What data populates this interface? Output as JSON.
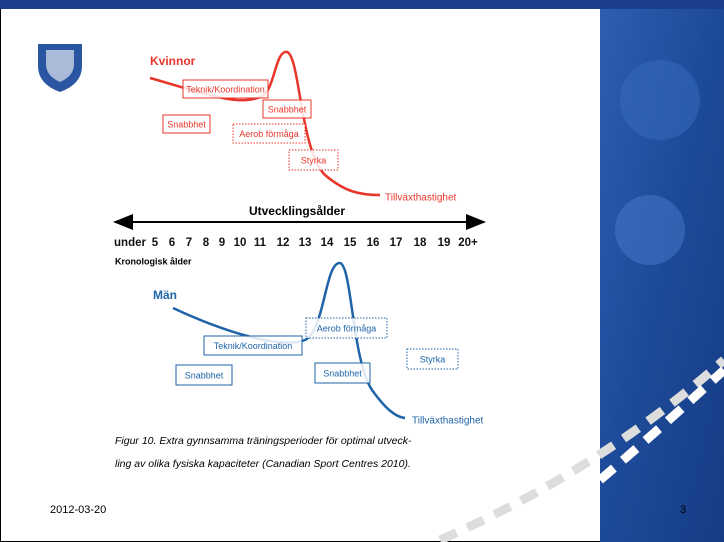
{
  "slide": {
    "women": {
      "title": "Kvinnor",
      "growth": "Tillväxthastighet",
      "boxes": [
        "Teknik/Koordination",
        "Snabbhet",
        "Snabbhet",
        "Aerob förmåga",
        "Styrka"
      ]
    },
    "axis": {
      "title": "Utvecklingsålder",
      "ages": [
        "under",
        "5",
        "6",
        "7",
        "8",
        "9",
        "10",
        "11",
        "12",
        "13",
        "14",
        "15",
        "16",
        "17",
        "18",
        "19",
        "20+"
      ],
      "subtitle": "Kronologisk ålder"
    },
    "men": {
      "title": "Män",
      "growth": "Tillväxthastighet",
      "boxes": [
        "Teknik/Koordination",
        "Aerob förmåga",
        "Snabbhet",
        "Snabbhet",
        "Styrka"
      ]
    },
    "caption": [
      "Figur 10. Extra gynnsamma träningsperioder för optimal utveck-",
      "ling av olika fysiska kapaciteter (Canadian Sport Centres 2010)."
    ],
    "footer": {
      "date": "2012-03-20",
      "page": "3"
    }
  }
}
